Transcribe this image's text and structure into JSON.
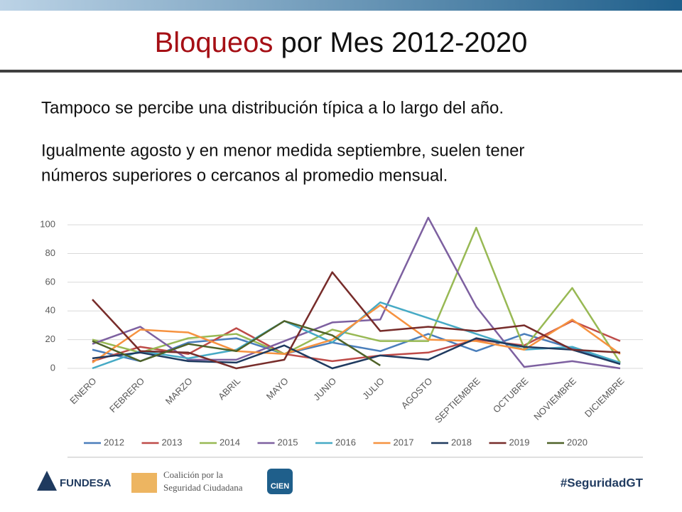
{
  "chart_data": {
    "type": "line",
    "title": [
      "Bloqueos",
      "por Mes 2012-2020"
    ],
    "paragraphs": [
      "Tampoco se percibe una distribución típica a lo largo del año.",
      "Igualmente agosto y en menor medida septiembre, suelen tener",
      "números superiores o cercanos al promedio mensual."
    ],
    "categories": [
      "ENERO",
      "FEBRERO",
      "MARZO",
      "ABRIL",
      "MAYO",
      "JUNIO",
      "JULIO",
      "AGOSTO",
      "SEPTIEMBRE",
      "OCTUBRE",
      "NOVIEMBRE",
      "DICIEMBRE"
    ],
    "ylim": [
      0,
      110
    ],
    "yticks": [
      0,
      20,
      40,
      60,
      80,
      100
    ],
    "grid": true,
    "series": [
      {
        "name": "2012",
        "color": "#4a7ebb",
        "values": [
          13,
          5,
          18,
          21,
          10,
          18,
          12,
          24,
          12,
          24,
          14,
          3
        ]
      },
      {
        "name": "2013",
        "color": "#be4b48",
        "values": [
          5,
          15,
          10,
          28,
          10,
          5,
          9,
          11,
          20,
          16,
          33,
          19
        ]
      },
      {
        "name": "2014",
        "color": "#98b954",
        "values": [
          20,
          11,
          21,
          24,
          10,
          27,
          19,
          19,
          98,
          14,
          56,
          4
        ]
      },
      {
        "name": "2015",
        "color": "#7d60a0",
        "values": [
          17,
          29,
          6,
          6,
          19,
          32,
          34,
          105,
          43,
          1,
          5,
          0
        ]
      },
      {
        "name": "2016",
        "color": "#46aac5",
        "values": [
          0,
          12,
          7,
          13,
          33,
          18,
          46,
          35,
          24,
          13,
          15,
          4
        ]
      },
      {
        "name": "2017",
        "color": "#f69240",
        "values": [
          4,
          27,
          25,
          12,
          10,
          20,
          44,
          20,
          19,
          13,
          34,
          10
        ]
      },
      {
        "name": "2018",
        "color": "#1f3a5f",
        "values": [
          7,
          11,
          5,
          4,
          16,
          0,
          9,
          6,
          21,
          15,
          13,
          3
        ]
      },
      {
        "name": "2019",
        "color": "#772c2a",
        "values": [
          48,
          12,
          11,
          0,
          6,
          67,
          26,
          29,
          26,
          30,
          13,
          11
        ]
      },
      {
        "name": "2020",
        "color": "#4f6228",
        "values": [
          19,
          5,
          17,
          12,
          33,
          23,
          2,
          null,
          null,
          null,
          null,
          null
        ]
      }
    ]
  },
  "footer": {
    "fundesa": "FUNDESA",
    "coalicion": [
      "Coalición por la",
      "Seguridad Ciudadana"
    ],
    "cien": "CIEN",
    "hashtag": "#SeguridadGT"
  }
}
